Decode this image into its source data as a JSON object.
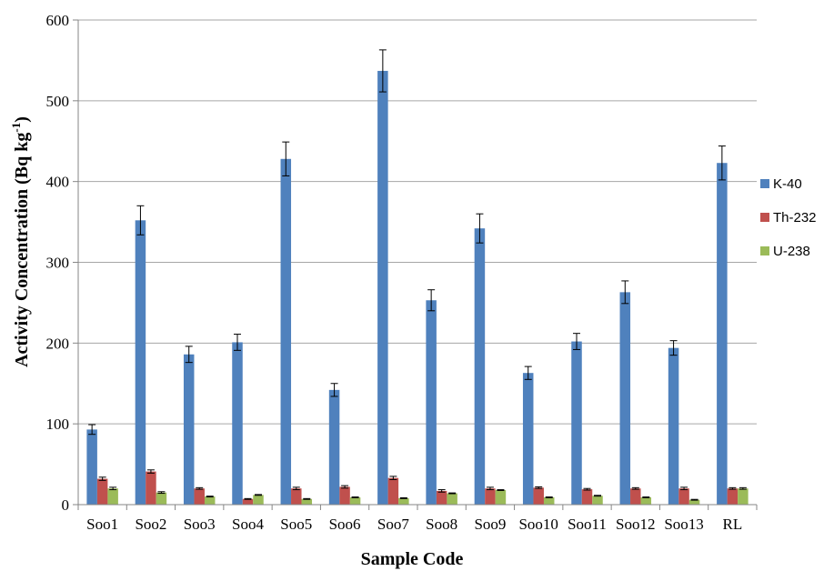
{
  "chart_data": {
    "type": "bar",
    "xlabel": "Sample Code",
    "ylabel_main": "Activity Concentration (Bq kg",
    "ylabel_sup": "-1",
    "ylabel_close": ")",
    "ylim": [
      0,
      600
    ],
    "yticks": [
      "0",
      "100",
      "200",
      "300",
      "400",
      "500",
      "600"
    ],
    "grid": true,
    "legend_position": "right",
    "categories": [
      "Soo1",
      "Soo2",
      "Soo3",
      "Soo4",
      "Soo5",
      "Soo6",
      "Soo7",
      "Soo8",
      "Soo9",
      "Soo10",
      "Soo11",
      "Soo12",
      "Soo13",
      "RL"
    ],
    "series": [
      {
        "name": "K-40",
        "color": "#4F81BD",
        "values": [
          93,
          352,
          186,
          201,
          428,
          142,
          537,
          253,
          342,
          163,
          202,
          263,
          194,
          423
        ],
        "errors": [
          6,
          18,
          10,
          10,
          21,
          8,
          26,
          13,
          18,
          8,
          10,
          14,
          9,
          21
        ]
      },
      {
        "name": "Th-232",
        "color": "#C0504D",
        "values": [
          32,
          41,
          20,
          7,
          20,
          22,
          33,
          17,
          20,
          21,
          19,
          20,
          20,
          20
        ],
        "errors": [
          2,
          2,
          1,
          0.5,
          1.5,
          1.5,
          2,
          1.5,
          1.5,
          1,
          1,
          1,
          1.5,
          1
        ]
      },
      {
        "name": "U-238",
        "color": "#9BBB59",
        "values": [
          20,
          15,
          10,
          12,
          7,
          9,
          8,
          14,
          18,
          9,
          11,
          9,
          6,
          20
        ],
        "errors": [
          1.5,
          1,
          0.5,
          0.5,
          0.5,
          0.5,
          0.5,
          0.5,
          0.5,
          0.5,
          0.5,
          0.5,
          0.5,
          1
        ]
      }
    ]
  }
}
